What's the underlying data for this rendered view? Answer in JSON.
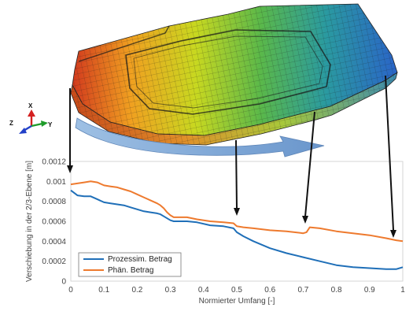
{
  "chart_data": {
    "type": "line",
    "xlabel": "Normierter Umfang [-]",
    "ylabel": "Verschiebung in der 2/3-Ebene [m]",
    "xlim": [
      0,
      1
    ],
    "ylim": [
      0,
      0.0012
    ],
    "x_ticks": [
      "0",
      "0.1",
      "0.2",
      "0.3",
      "0.4",
      "0.5",
      "0.6",
      "0.7",
      "0.8",
      "0.9",
      "1"
    ],
    "y_ticks": [
      "0",
      "0.0002",
      "0.0004",
      "0.0006",
      "0.0008",
      "0.001",
      "0.0012"
    ],
    "grid": false,
    "legend_position": "bottom-left",
    "series": [
      {
        "name": "Prozessim. Betrag",
        "color": "#1f6fb8",
        "x": [
          0,
          0.02,
          0.04,
          0.06,
          0.08,
          0.1,
          0.12,
          0.14,
          0.16,
          0.18,
          0.2,
          0.22,
          0.24,
          0.26,
          0.27,
          0.28,
          0.29,
          0.3,
          0.31,
          0.33,
          0.35,
          0.38,
          0.42,
          0.46,
          0.49,
          0.5,
          0.52,
          0.55,
          0.6,
          0.65,
          0.7,
          0.75,
          0.8,
          0.85,
          0.9,
          0.95,
          0.98,
          1.0
        ],
        "y": [
          0.00091,
          0.00086,
          0.00085,
          0.00085,
          0.00082,
          0.00079,
          0.00078,
          0.00077,
          0.00076,
          0.00074,
          0.00072,
          0.0007,
          0.00069,
          0.00068,
          0.00067,
          0.00065,
          0.00063,
          0.00061,
          0.0006,
          0.0006,
          0.0006,
          0.00059,
          0.00056,
          0.00055,
          0.00053,
          0.00049,
          0.00045,
          0.0004,
          0.00033,
          0.00028,
          0.00024,
          0.0002,
          0.00016,
          0.00014,
          0.00013,
          0.00012,
          0.00012,
          0.00014
        ]
      },
      {
        "name": "Phän. Betrag",
        "color": "#ee7a2e",
        "x": [
          0,
          0.02,
          0.04,
          0.06,
          0.08,
          0.1,
          0.12,
          0.14,
          0.16,
          0.18,
          0.2,
          0.22,
          0.24,
          0.26,
          0.27,
          0.28,
          0.29,
          0.3,
          0.31,
          0.33,
          0.35,
          0.38,
          0.42,
          0.46,
          0.49,
          0.5,
          0.52,
          0.55,
          0.6,
          0.65,
          0.7,
          0.71,
          0.72,
          0.75,
          0.8,
          0.85,
          0.9,
          0.95,
          0.98,
          1.0
        ],
        "y": [
          0.00097,
          0.00098,
          0.00099,
          0.001,
          0.00099,
          0.00096,
          0.00095,
          0.00094,
          0.00092,
          0.0009,
          0.00087,
          0.00084,
          0.00081,
          0.00078,
          0.00076,
          0.00073,
          0.00069,
          0.00066,
          0.00064,
          0.00064,
          0.00064,
          0.00062,
          0.0006,
          0.00059,
          0.00058,
          0.00055,
          0.00054,
          0.00053,
          0.00051,
          0.0005,
          0.00048,
          0.00049,
          0.00054,
          0.00053,
          0.0005,
          0.00048,
          0.00046,
          0.00043,
          0.00041,
          0.0004
        ]
      }
    ]
  },
  "model": {
    "axis_x_label": "X",
    "axis_y_label": "Y",
    "axis_z_label": "Z",
    "axis_colors": {
      "x": "#d42020",
      "y": "#1f9c2a",
      "z": "#2240c8"
    },
    "gradient_colors": [
      "#d23a1e",
      "#f0a020",
      "#c8d820",
      "#5ab84a",
      "#2a9aa0",
      "#2a64c8"
    ],
    "arrow_color": "#7ea8d8"
  }
}
